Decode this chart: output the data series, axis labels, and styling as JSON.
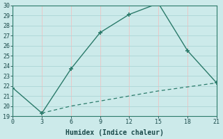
{
  "xlabel": "Humidex (Indice chaleur)",
  "x_ticks": [
    0,
    3,
    6,
    9,
    12,
    15,
    18,
    21
  ],
  "ylim": [
    19,
    30
  ],
  "yticks": [
    19,
    20,
    21,
    22,
    23,
    24,
    25,
    26,
    27,
    28,
    29,
    30
  ],
  "line1_x": [
    0,
    3,
    6,
    9,
    12,
    15,
    18,
    21
  ],
  "line1_y": [
    21.8,
    19.3,
    23.7,
    27.3,
    29.1,
    30.2,
    25.5,
    22.3
  ],
  "line2_x": [
    3,
    6,
    9,
    12,
    15,
    18,
    21
  ],
  "line2_y": [
    19.3,
    20.0,
    20.5,
    21.0,
    21.5,
    21.9,
    22.3
  ],
  "line_color": "#2a7a6a",
  "bg_color": "#cceaea",
  "grid_color_h": "#b0d8d8",
  "grid_color_v": "#e8c8c8",
  "marker": "+",
  "marker_size": 5,
  "font_color": "#1a4a4a",
  "xlim": [
    0,
    21
  ]
}
